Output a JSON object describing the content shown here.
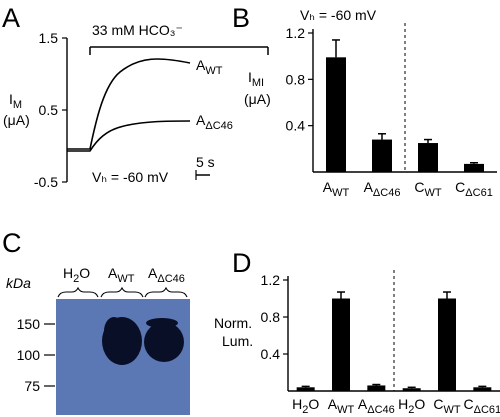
{
  "panels": {
    "a": "A",
    "b": "B",
    "c": "C",
    "d": "D"
  },
  "trace_panel": {
    "stimulus_label": "33 mM HCO₃⁻",
    "ylabel_main": "I",
    "ylabel_sub": "M",
    "ylabel_unit": "(μA)",
    "yticks": [
      "1.5",
      "0.5",
      "-0.5"
    ],
    "trace_labels": [
      {
        "main": "A",
        "sub": "WT"
      },
      {
        "main": "A",
        "sub": "ΔC46"
      }
    ],
    "holding": "Vₕ = -60 mV",
    "scale_bar": "5 s"
  },
  "blot": {
    "unit": "kDa",
    "lanes": [
      {
        "main": "H",
        "sub": "2",
        "rest": "O"
      },
      {
        "main": "A",
        "sub": "WT",
        "rest": ""
      },
      {
        "main": "A",
        "sub": "ΔC46",
        "rest": ""
      }
    ],
    "markers": [
      "150",
      "100",
      "75"
    ],
    "colors": {
      "membrane": "#5b78b4",
      "band": "#0a0f28"
    }
  },
  "chart_data": [
    {
      "panel": "B",
      "type": "bar",
      "title": "Vₕ = -60 mV",
      "ylabel_main": "I",
      "ylabel_sub": "MI",
      "ylabel_unit": "(μA)",
      "ylim": [
        0,
        1.2
      ],
      "yticks": [
        "1.2",
        "0.8",
        "0.4"
      ],
      "categories": [
        {
          "main": "A",
          "sub": "WT"
        },
        {
          "main": "A",
          "sub": "ΔC46"
        },
        {
          "main": "C",
          "sub": "WT"
        },
        {
          "main": "C",
          "sub": "ΔC61"
        }
      ],
      "values": [
        0.99,
        0.28,
        0.25,
        0.07
      ],
      "errors": [
        0.15,
        0.05,
        0.03,
        0.01
      ],
      "divider_after": 1
    },
    {
      "panel": "D",
      "type": "bar",
      "ylabel_lines": [
        "Norm.",
        "Lum."
      ],
      "ylim": [
        0,
        1.2
      ],
      "yticks": [
        "1.2",
        "0.8",
        "0.4"
      ],
      "categories": [
        {
          "main": "H",
          "sub": "2",
          "rest": "O"
        },
        {
          "main": "A",
          "sub": "WT",
          "rest": ""
        },
        {
          "main": "A",
          "sub": "ΔC46",
          "rest": ""
        },
        {
          "main": "H",
          "sub": "2",
          "rest": "O"
        },
        {
          "main": "C",
          "sub": "WT",
          "rest": ""
        },
        {
          "main": "C",
          "sub": "ΔC61",
          "rest": ""
        }
      ],
      "values": [
        0.04,
        1.0,
        0.06,
        0.03,
        1.0,
        0.04
      ],
      "errors": [
        0.01,
        0.07,
        0.01,
        0.01,
        0.07,
        0.01
      ],
      "divider_after": 2
    }
  ]
}
